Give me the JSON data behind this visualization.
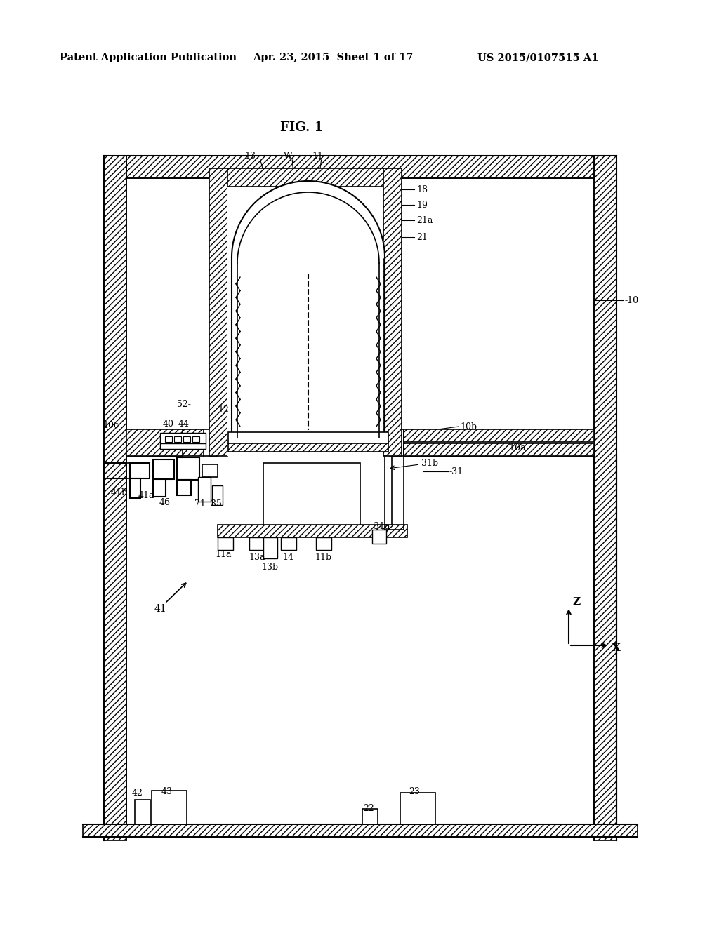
{
  "title": "FIG. 1",
  "header_left": "Patent Application Publication",
  "header_center": "Apr. 23, 2015  Sheet 1 of 17",
  "header_right": "US 2015/0107515 A1",
  "bg_color": "#ffffff",
  "line_color": "#000000",
  "fig_width": 10.24,
  "fig_height": 13.2
}
